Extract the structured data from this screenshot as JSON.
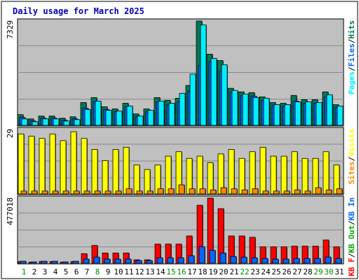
{
  "chart_data": {
    "type": "bar",
    "title": "Daily usage for March 2025",
    "categories": [
      "1",
      "2",
      "3",
      "4",
      "5",
      "6",
      "7",
      "8",
      "9",
      "10",
      "11",
      "12",
      "13",
      "14",
      "15",
      "16",
      "17",
      "18",
      "19",
      "20",
      "21",
      "22",
      "23",
      "24",
      "25",
      "26",
      "27",
      "28",
      "29",
      "30",
      "31"
    ],
    "weekend_days": [
      "1",
      "8",
      "15",
      "16",
      "22",
      "29",
      "30"
    ],
    "colors": {
      "title": "#0000bb",
      "background": "#ffffff",
      "panel": "#c0c0c0",
      "gridline": "#888888",
      "pages": "#00eeff",
      "files": "#0066ff",
      "hits": "#007755",
      "visits": "#ffff00",
      "sites": "#ff8800",
      "kbin": "#0066ff",
      "kbout": "#00aa00",
      "kbf": "#ff0000",
      "weekday_label": "#000000",
      "weekend_label": "#008800"
    },
    "panels": [
      {
        "key": "hits_files_pages",
        "ymax_label": "7329",
        "ylim": [
          0,
          7329
        ],
        "legend": [
          {
            "name": "Pages",
            "color": "#00eeff"
          },
          {
            "name": "/",
            "color": "#000000"
          },
          {
            "name": "Files",
            "color": "#0066ff"
          },
          {
            "name": "/",
            "color": "#000000"
          },
          {
            "name": "Hits",
            "color": "#007755"
          }
        ],
        "series": [
          {
            "name": "Hits",
            "color": "#007755",
            "values": [
              750,
              450,
              650,
              650,
              500,
              600,
              1600,
              1950,
              1300,
              1150,
              1550,
              800,
              1150,
              1950,
              1750,
              1900,
              2800,
              7329,
              5000,
              4550,
              2600,
              2350,
              2300,
              2000,
              1600,
              1550,
              2100,
              1800,
              1800,
              2350,
              1450
            ]
          },
          {
            "name": "Files",
            "color": "#0066ff",
            "values": [
              550,
              300,
              500,
              500,
              350,
              450,
              1200,
              1650,
              1100,
              950,
              1300,
              600,
              950,
              1650,
              1450,
              1650,
              2400,
              4200,
              4500,
              3800,
              2300,
              2100,
              2050,
              1750,
              1400,
              1350,
              1700,
              1550,
              1550,
              2000,
              1250
            ]
          },
          {
            "name": "Pages",
            "color": "#00eeff",
            "values": [
              450,
              250,
              450,
              450,
              300,
              400,
              1100,
              1700,
              1050,
              1000,
              1350,
              650,
              1050,
              1700,
              1550,
              2250,
              3600,
              7050,
              4700,
              4250,
              2450,
              2200,
              1950,
              1900,
              1450,
              1450,
              1650,
              1650,
              1600,
              2150,
              1350
            ]
          }
        ]
      },
      {
        "key": "visits_sites",
        "ymax_label": "29",
        "ylim": [
          0,
          29
        ],
        "legend": [
          {
            "name": "Sites",
            "color": "#ff8800"
          },
          {
            "name": "/",
            "color": "#000000"
          },
          {
            "name": "Visits",
            "color": "#ffff00"
          }
        ],
        "series": [
          {
            "name": "Visits",
            "color": "#ffff00",
            "values": [
              27,
              26,
              25,
              27,
              24,
              28,
              25,
              20,
              15,
              20,
              21,
              13,
              11,
              13,
              17,
              19,
              16,
              17,
              14,
              18,
              20,
              16,
              19,
              21,
              17,
              17,
              19,
              16,
              16,
              19,
              13
            ]
          },
          {
            "name": "Sites",
            "color": "#ff8800",
            "values": [
              1.3,
              1.3,
              1.3,
              1.3,
              1.3,
              1.3,
              1.3,
              1.3,
              1.3,
              1.3,
              2.3,
              1.3,
              1.3,
              2.3,
              2.3,
              4.1,
              2.3,
              2.3,
              1.8,
              2.8,
              2.3,
              1.8,
              2.3,
              1.3,
              1.3,
              1.3,
              1.8,
              1.3,
              2.8,
              1.8,
              2.3
            ]
          }
        ]
      },
      {
        "key": "kbytes",
        "ymax_label": "477018",
        "ylim": [
          0,
          477018
        ],
        "legend": [
          {
            "name": "KB F",
            "color": "#ff0000"
          },
          {
            "name": "/",
            "color": "#000000"
          },
          {
            "name": "KB Out",
            "color": "#00aa00"
          },
          {
            "name": "/",
            "color": "#000000"
          },
          {
            "name": "KB In",
            "color": "#0066ff"
          }
        ],
        "series": [
          {
            "name": "KB F",
            "color": "#ff0000",
            "values": [
              12000,
              8000,
              12000,
              12000,
              8000,
              12000,
              70000,
              130000,
              75000,
              75000,
              75000,
              25000,
              25000,
              140000,
              140000,
              140000,
              200000,
              425000,
              477018,
              400000,
              200000,
              200000,
              190000,
              120000,
              120000,
              120000,
              125000,
              125000,
              125000,
              170000,
              120000
            ]
          },
          {
            "name": "KB In",
            "color": "#0066ff",
            "values": [
              15000,
              10000,
              15000,
              15000,
              10000,
              15000,
              30000,
              45000,
              30000,
              30000,
              30000,
              20000,
              20000,
              40000,
              40000,
              40000,
              55000,
              120000,
              95000,
              75000,
              50000,
              45000,
              40000,
              35000,
              30000,
              30000,
              35000,
              35000,
              35000,
              45000,
              35000
            ]
          }
        ]
      }
    ]
  }
}
